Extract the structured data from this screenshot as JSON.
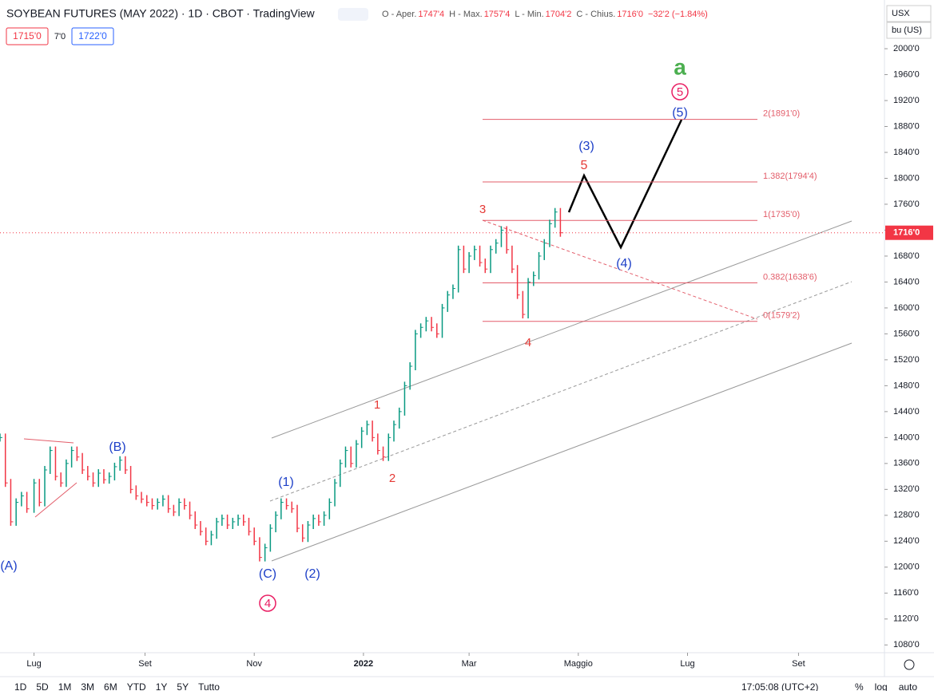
{
  "header": {
    "title": "SOYBEAN FUTURES (MAY 2022) · 1D · CBOT · TradingView",
    "ohlc": [
      {
        "label": "O - Aper.",
        "value": "1747'4"
      },
      {
        "label": "H - Max.",
        "value": "1757'4"
      },
      {
        "label": "L - Min.",
        "value": "1704'2"
      },
      {
        "label": "C - Chius.",
        "value": "1716'0"
      }
    ],
    "change": "−32'2 (−1.84%)",
    "boxes": [
      "1715'0",
      "7'0",
      "1722'0"
    ],
    "currency": "USX",
    "unit": "bu (US)"
  },
  "toolbar": {
    "ranges": [
      "1D",
      "5D",
      "1M",
      "3M",
      "6M",
      "YTD",
      "1Y",
      "5Y",
      "Tutto"
    ],
    "time": "17:05:08 (UTC+2)",
    "options": [
      "%",
      "log",
      "auto"
    ]
  },
  "chart_data": {
    "type": "bar",
    "color_up": "#089981",
    "color_down": "#f23645",
    "x": [
      -19,
      -16,
      -13,
      -10,
      -7,
      -4,
      0,
      3,
      6,
      9,
      12,
      15,
      18,
      21,
      24,
      27,
      30,
      33,
      36,
      39,
      42,
      45,
      48,
      51,
      54,
      57,
      60,
      63,
      66,
      69,
      72,
      75,
      78,
      81,
      84,
      87,
      90,
      93,
      96,
      99,
      102,
      105,
      108,
      111,
      114,
      117,
      120,
      123,
      126,
      129,
      132,
      135,
      138,
      141,
      144,
      147,
      150,
      153,
      156,
      159,
      162,
      165,
      168,
      171,
      174,
      177,
      180,
      183,
      186,
      189,
      192,
      195,
      198,
      201,
      204,
      207,
      210,
      213,
      216,
      219,
      222,
      225,
      228,
      231,
      234,
      237,
      240,
      243,
      246,
      249,
      252,
      255,
      258,
      261,
      264,
      267,
      270,
      273,
      276,
      279,
      282,
      285,
      288,
      291,
      294
    ],
    "values": [
      1400,
      1330,
      1270,
      1300,
      1310,
      1290,
      1330,
      1300,
      1350,
      1380,
      1340,
      1330,
      1360,
      1380,
      1370,
      1350,
      1340,
      1330,
      1345,
      1335,
      1340,
      1355,
      1365,
      1350,
      1320,
      1310,
      1305,
      1300,
      1295,
      1300,
      1305,
      1290,
      1285,
      1300,
      1295,
      1280,
      1265,
      1255,
      1240,
      1250,
      1270,
      1275,
      1265,
      1270,
      1275,
      1270,
      1255,
      1240,
      1215,
      1230,
      1260,
      1280,
      1300,
      1295,
      1290,
      1260,
      1245,
      1265,
      1275,
      1270,
      1280,
      1300,
      1330,
      1360,
      1380,
      1360,
      1390,
      1410,
      1420,
      1400,
      1380,
      1370,
      1400,
      1420,
      1440,
      1480,
      1510,
      1560,
      1570,
      1580,
      1570,
      1560,
      1600,
      1620,
      1630,
      1690,
      1660,
      1680,
      1690,
      1670,
      1660,
      1690,
      1700,
      1720,
      1690,
      1660,
      1620,
      1590,
      1640,
      1650,
      1680,
      1700,
      1730,
      1748,
      1716
    ],
    "xlim": [
      -19,
      475
    ],
    "xticks": [
      {
        "value": 0,
        "label": "Lug"
      },
      {
        "value": 62,
        "label": "Set"
      },
      {
        "value": 123,
        "label": "Nov"
      },
      {
        "value": 184,
        "label": "2022"
      },
      {
        "value": 243,
        "label": "Mar"
      },
      {
        "value": 304,
        "label": "Maggio"
      },
      {
        "value": 365,
        "label": "Lug"
      },
      {
        "value": 427,
        "label": "Set"
      }
    ],
    "ylim": [
      1068,
      2069
    ],
    "yticks": [
      {
        "value": 1080,
        "label": "1080'0"
      },
      {
        "value": 1120,
        "label": "1120'0"
      },
      {
        "value": 1160,
        "label": "1160'0"
      },
      {
        "value": 1200,
        "label": "1200'0"
      },
      {
        "value": 1240,
        "label": "1240'0"
      },
      {
        "value": 1280,
        "label": "1280'0"
      },
      {
        "value": 1320,
        "label": "1320'0"
      },
      {
        "value": 1360,
        "label": "1360'0"
      },
      {
        "value": 1400,
        "label": "1400'0"
      },
      {
        "value": 1440,
        "label": "1440'0"
      },
      {
        "value": 1480,
        "label": "1480'0"
      },
      {
        "value": 1520,
        "label": "1520'0"
      },
      {
        "value": 1560,
        "label": "1560'0"
      },
      {
        "value": 1600,
        "label": "1600'0"
      },
      {
        "value": 1640,
        "label": "1640'0"
      },
      {
        "value": 1680,
        "label": "1680'0"
      },
      {
        "value": 1720,
        "label": "1720'0"
      },
      {
        "value": 1760,
        "label": "1760'0"
      },
      {
        "value": 1800,
        "label": "1800'0"
      },
      {
        "value": 1840,
        "label": "1840'0"
      },
      {
        "value": 1880,
        "label": "1880'0"
      },
      {
        "value": 1920,
        "label": "1920'0"
      },
      {
        "value": 1960,
        "label": "1960'0"
      },
      {
        "value": 2000,
        "label": "2000'0"
      }
    ],
    "fib_levels": [
      {
        "value": 1891,
        "label": "2(1891'0)"
      },
      {
        "value": 1794.5,
        "label": "1.382(1794'4)"
      },
      {
        "value": 1735,
        "label": "1(1735'0)"
      },
      {
        "value": 1638.75,
        "label": "0.382(1638'6)"
      },
      {
        "value": 1579.25,
        "label": "0(1579'2)"
      }
    ],
    "last_price": {
      "value": 1716,
      "label": "1716'0"
    },
    "annotations": [
      "a",
      "5",
      "(5)",
      "(3)",
      "5",
      "3",
      "(4)",
      "4",
      "1",
      "2",
      "(B)",
      "(1)",
      "(A)",
      "(C)",
      "(2)",
      "4"
    ]
  }
}
